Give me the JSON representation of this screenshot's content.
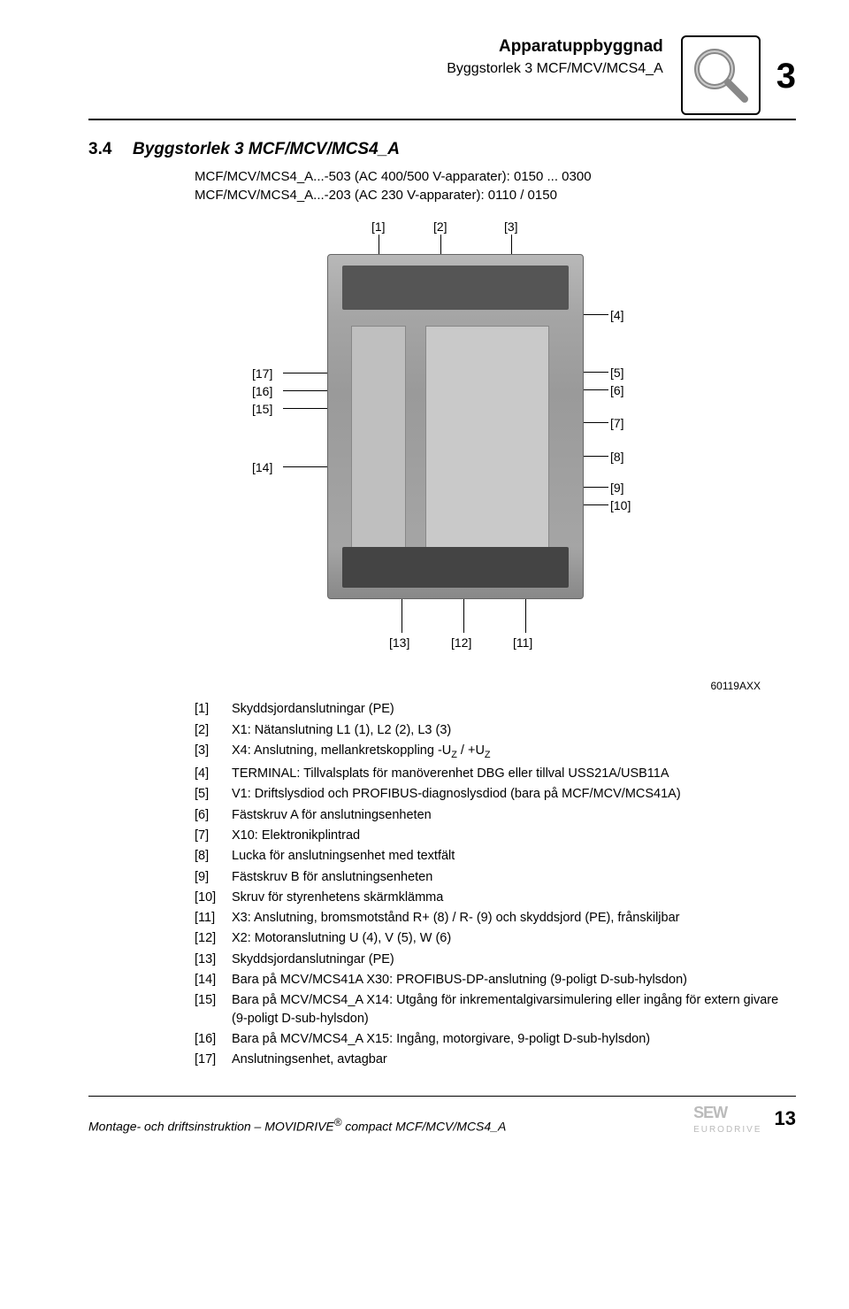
{
  "header": {
    "title": "Apparatuppbyggnad",
    "subtitle": "Byggstorlek 3 MCF/MCV/MCS4_A",
    "page_number_top": "3"
  },
  "section": {
    "number": "3.4",
    "title": "Byggstorlek 3 MCF/MCV/MCS4_A",
    "line1": "MCF/MCV/MCS4_A...-503 (AC 400/500 V-apparater): 0150 ... 0300",
    "line2": "MCF/MCV/MCS4_A...-203 (AC 230 V-apparater): 0110 / 0150"
  },
  "diagram": {
    "callouts_top": [
      "[1]",
      "[2]",
      "[3]"
    ],
    "callouts_right": [
      "[4]",
      "[5]",
      "[6]",
      "[7]",
      "[8]",
      "[9]",
      "[10]"
    ],
    "callouts_left": [
      "[17]",
      "[16]",
      "[15]",
      "[14]"
    ],
    "callouts_bottom": [
      "[13]",
      "[12]",
      "[11]"
    ],
    "credit": "60119AXX"
  },
  "legend": [
    {
      "k": "[1]",
      "t": "Skyddsjordanslutningar (PE)"
    },
    {
      "k": "[2]",
      "t": "X1: Nätanslutning L1 (1), L2 (2), L3 (3)"
    },
    {
      "k": "[3]",
      "t": "X4: Anslutning, mellankretskoppling -U",
      "sub1": "Z",
      "mid": " / +U",
      "sub2": "Z"
    },
    {
      "k": "[4]",
      "t": "TERMINAL: Tillvalsplats för manöverenhet DBG eller tillval USS21A/USB11A"
    },
    {
      "k": "[5]",
      "t": "V1: Driftslysdiod och PROFIBUS-diagnoslysdiod (bara på MCF/MCV/MCS41A)"
    },
    {
      "k": "[6]",
      "t": "Fästskruv A för anslutningsenheten"
    },
    {
      "k": "[7]",
      "t": "X10: Elektronikplintrad"
    },
    {
      "k": "[8]",
      "t": "Lucka för anslutningsenhet med textfält"
    },
    {
      "k": "[9]",
      "t": "Fästskruv B för anslutningsenheten"
    },
    {
      "k": "[10]",
      "t": "Skruv för styrenhetens skärmklämma"
    },
    {
      "k": "[11]",
      "t": "X3: Anslutning, bromsmotstånd R+ (8) / R- (9) och skyddsjord (PE), frånskiljbar"
    },
    {
      "k": "[12]",
      "t": "X2: Motoranslutning U (4), V (5), W (6)"
    },
    {
      "k": "[13]",
      "t": "Skyddsjordanslutningar (PE)"
    },
    {
      "k": "[14]",
      "t": "Bara på MCV/MCS41A X30: PROFIBUS-DP-anslutning (9-poligt D-sub-hylsdon)"
    },
    {
      "k": "[15]",
      "t": "Bara på MCV/MCS4_A X14: Utgång för inkrementalgivarsimulering eller ingång för extern givare (9-poligt D-sub-hylsdon)"
    },
    {
      "k": "[16]",
      "t": "Bara på MCV/MCS4_A X15: Ingång, motorgivare, 9-poligt D-sub-hylsdon)"
    },
    {
      "k": "[17]",
      "t": "Anslutningsenhet, avtagbar"
    }
  ],
  "footer": {
    "left": "Montage- och driftsinstruktion – MOVIDRIVE® compact MCF/MCV/MCS4_A",
    "page": "13",
    "logo_top": "SEW",
    "logo_bottom": "EURODRIVE"
  }
}
